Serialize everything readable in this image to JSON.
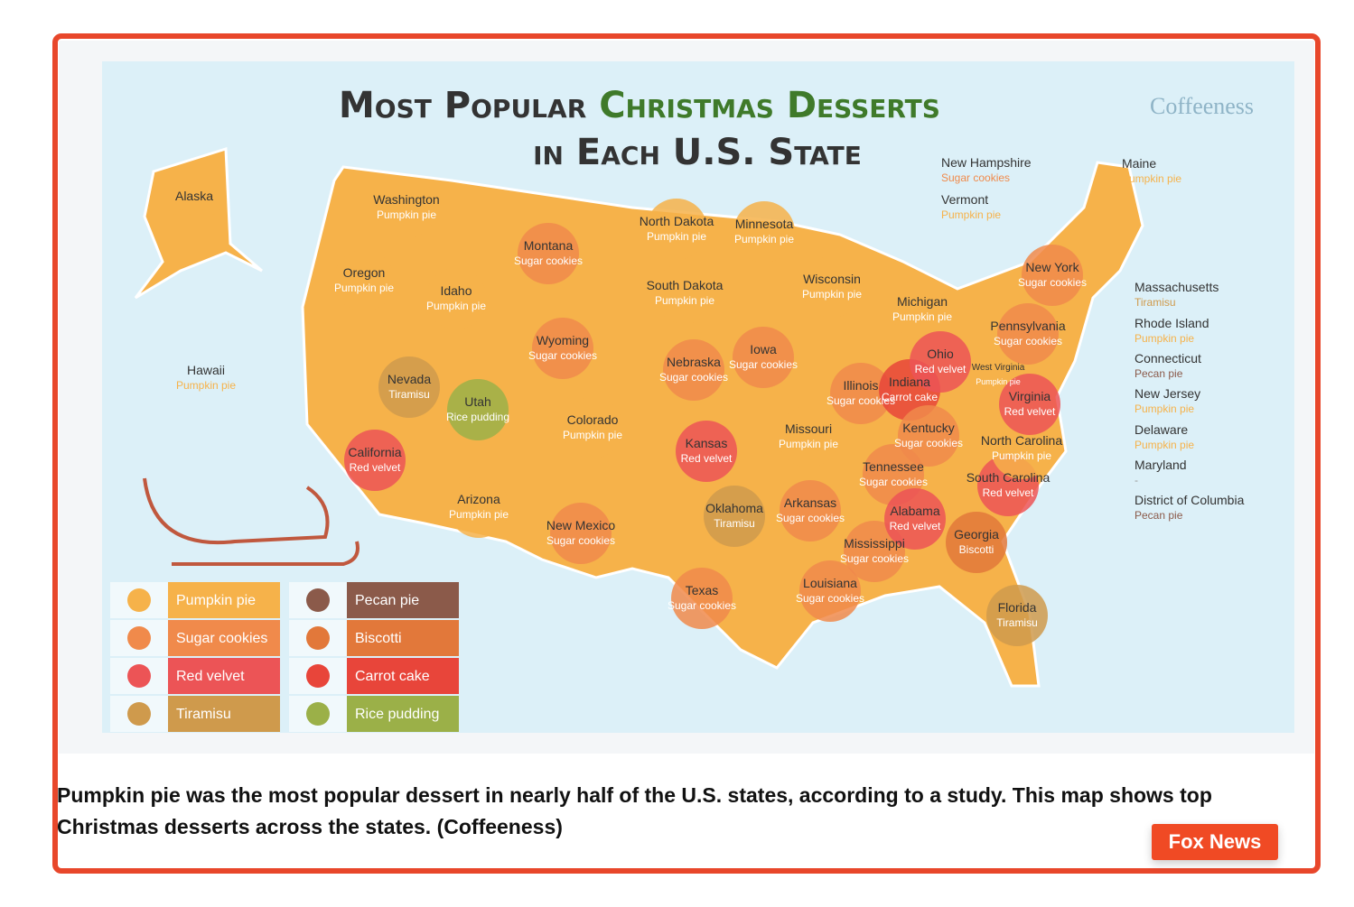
{
  "infographic": {
    "title_part1": "Most Popular",
    "title_part2": "Christmas Desserts",
    "title_part3": "in Each U.S. State",
    "brand": "Coffeeness",
    "states": [
      {
        "name": "Alaska",
        "dessert": "Pumpkin pie"
      },
      {
        "name": "Hawaii",
        "dessert": "Pumpkin pie"
      },
      {
        "name": "Washington",
        "dessert": "Pumpkin pie"
      },
      {
        "name": "Oregon",
        "dessert": "Pumpkin pie"
      },
      {
        "name": "Idaho",
        "dessert": "Pumpkin pie"
      },
      {
        "name": "Montana",
        "dessert": "Sugar cookies"
      },
      {
        "name": "Wyoming",
        "dessert": "Sugar cookies"
      },
      {
        "name": "Nevada",
        "dessert": "Tiramisu"
      },
      {
        "name": "Utah",
        "dessert": "Rice pudding"
      },
      {
        "name": "California",
        "dessert": "Red velvet"
      },
      {
        "name": "Arizona",
        "dessert": "Pumpkin pie"
      },
      {
        "name": "Colorado",
        "dessert": "Pumpkin pie"
      },
      {
        "name": "New Mexico",
        "dessert": "Sugar cookies"
      },
      {
        "name": "North Dakota",
        "dessert": "Pumpkin pie"
      },
      {
        "name": "South Dakota",
        "dessert": "Pumpkin pie"
      },
      {
        "name": "Nebraska",
        "dessert": "Sugar cookies"
      },
      {
        "name": "Kansas",
        "dessert": "Red velvet"
      },
      {
        "name": "Oklahoma",
        "dessert": "Tiramisu"
      },
      {
        "name": "Texas",
        "dessert": "Sugar cookies"
      },
      {
        "name": "Minnesota",
        "dessert": "Pumpkin pie"
      },
      {
        "name": "Iowa",
        "dessert": "Sugar cookies"
      },
      {
        "name": "Missouri",
        "dessert": "Pumpkin pie"
      },
      {
        "name": "Arkansas",
        "dessert": "Sugar cookies"
      },
      {
        "name": "Louisiana",
        "dessert": "Sugar cookies"
      },
      {
        "name": "Wisconsin",
        "dessert": "Pumpkin pie"
      },
      {
        "name": "Illinois",
        "dessert": "Sugar cookies"
      },
      {
        "name": "Michigan",
        "dessert": "Pumpkin pie"
      },
      {
        "name": "Indiana",
        "dessert": "Carrot cake"
      },
      {
        "name": "Ohio",
        "dessert": "Red velvet"
      },
      {
        "name": "Kentucky",
        "dessert": "Sugar cookies"
      },
      {
        "name": "Tennessee",
        "dessert": "Sugar cookies"
      },
      {
        "name": "Mississippi",
        "dessert": "Sugar cookies"
      },
      {
        "name": "Alabama",
        "dessert": "Red velvet"
      },
      {
        "name": "Georgia",
        "dessert": "Biscotti"
      },
      {
        "name": "Florida",
        "dessert": "Tiramisu"
      },
      {
        "name": "South Carolina",
        "dessert": "Red velvet"
      },
      {
        "name": "North Carolina",
        "dessert": "Pumpkin pie"
      },
      {
        "name": "Virginia",
        "dessert": "Red velvet"
      },
      {
        "name": "West Virginia",
        "dessert": "Pumpkin pie"
      },
      {
        "name": "Pennsylvania",
        "dessert": "Sugar cookies"
      },
      {
        "name": "New York",
        "dessert": "Sugar cookies"
      },
      {
        "name": "Maine",
        "dessert": "Pumpkin pie"
      },
      {
        "name": "New Hampshire",
        "dessert": "Sugar cookies"
      },
      {
        "name": "Vermont",
        "dessert": "Pumpkin pie"
      },
      {
        "name": "Massachusetts",
        "dessert": "Tiramisu"
      },
      {
        "name": "Rhode Island",
        "dessert": "Pumpkin pie"
      },
      {
        "name": "Connecticut",
        "dessert": "Pecan pie"
      },
      {
        "name": "New Jersey",
        "dessert": "Pumpkin pie"
      },
      {
        "name": "Delaware",
        "dessert": "Pumpkin pie"
      },
      {
        "name": "Maryland",
        "dessert": "-"
      },
      {
        "name": "District of Columbia",
        "dessert": "Pecan pie"
      }
    ],
    "legend": [
      {
        "label": "Pumpkin pie",
        "color": "#f6b24a"
      },
      {
        "label": "Sugar cookies",
        "color": "#f08a4b"
      },
      {
        "label": "Red velvet",
        "color": "#ec5456"
      },
      {
        "label": "Tiramisu",
        "color": "#cf9a4c"
      },
      {
        "label": "Pecan pie",
        "color": "#8b5a4a"
      },
      {
        "label": "Biscotti",
        "color": "#e2783a"
      },
      {
        "label": "Carrot cake",
        "color": "#e8453a"
      },
      {
        "label": "Rice pudding",
        "color": "#9bb048"
      }
    ]
  },
  "caption": "Pumpkin pie was the most popular dessert in nearly half of the U.S. states, according to a study. This map shows top Christmas desserts across the states.  (Coffeeness)",
  "source_button": "Fox News"
}
